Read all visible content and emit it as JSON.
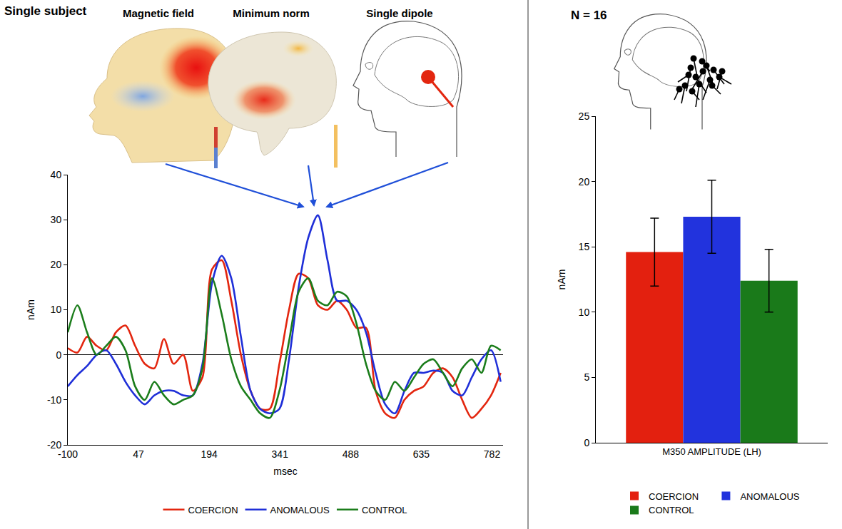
{
  "chart_data": [
    {
      "type": "line",
      "title": "Single subject",
      "annotations": [
        "Magnetic field",
        "Minimum norm",
        "Single dipole"
      ],
      "xlabel": "msec",
      "ylabel": "nAm",
      "x": [
        -100,
        -80,
        -60,
        -40,
        -20,
        0,
        20,
        40,
        60,
        80,
        100,
        120,
        140,
        160,
        180,
        200,
        220,
        240,
        260,
        280,
        300,
        320,
        340,
        360,
        380,
        400,
        420,
        440,
        460,
        480,
        500,
        520,
        540,
        560,
        580,
        600,
        620,
        640,
        660,
        680,
        700,
        720,
        740,
        760,
        780,
        800
      ],
      "series": [
        {
          "name": "COERCION",
          "color": "#e3260f",
          "values": [
            1.5,
            0.5,
            4,
            2,
            1,
            5,
            6.5,
            2,
            -2,
            -3,
            3.5,
            -2,
            0,
            -8,
            -5,
            19,
            21,
            12,
            0,
            -8,
            -12,
            -12,
            -2,
            10,
            18,
            17,
            11,
            10,
            12,
            10,
            6,
            6,
            -8,
            -13,
            -14,
            -10,
            -8,
            -7,
            -4,
            -3,
            -5,
            -10,
            -14,
            -12,
            -9,
            -4
          ]
        },
        {
          "name": "ANOMALOUS",
          "color": "#1f2fd8",
          "values": [
            -7,
            -4.5,
            -2.5,
            0,
            1,
            -2,
            -6,
            -9,
            -11,
            -9,
            -8,
            -8,
            -9,
            -9,
            -2,
            16,
            22,
            17,
            4,
            -8,
            -12,
            -13,
            -12,
            -1,
            15,
            26,
            31,
            21,
            12,
            12,
            10,
            5,
            -4,
            -11,
            -13,
            -8,
            -4,
            -4,
            -3.5,
            -4,
            -8,
            -9,
            -5,
            -1,
            1,
            -6
          ]
        },
        {
          "name": "CONTROL",
          "color": "#1b7d1b",
          "values": [
            5,
            11,
            5,
            0,
            2,
            4,
            1,
            -7,
            -10,
            -6,
            -9,
            -11,
            -10,
            -9,
            -3,
            17,
            9,
            -1,
            -7,
            -10,
            -13,
            -14,
            -8,
            3,
            14,
            17,
            12,
            11,
            14,
            13,
            7,
            -2,
            -8,
            -10,
            -6,
            -8,
            -5,
            -2,
            -1,
            -4,
            -7,
            -3,
            -1,
            -4,
            2,
            1
          ]
        }
      ],
      "xlim": [
        -100,
        805
      ],
      "xticks": [
        -100,
        47,
        194,
        341,
        488,
        635,
        782
      ],
      "ylim": [
        -20,
        40
      ],
      "yticks": [
        -20,
        -10,
        0,
        10,
        20,
        30,
        40
      ],
      "legend": "bottom",
      "grid": false
    },
    {
      "type": "bar",
      "title": "N = 16",
      "ylabel": "nAm",
      "categories": [
        "M350 AMPLITUDE (LH)"
      ],
      "series": [
        {
          "name": "COERCION",
          "color": "#e3200f",
          "values": [
            14.6
          ],
          "errors": [
            2.6
          ]
        },
        {
          "name": "ANOMALOUS",
          "color": "#2233dd",
          "values": [
            17.3
          ],
          "errors": [
            2.8
          ]
        },
        {
          "name": "CONTROL",
          "color": "#1a7a1a",
          "values": [
            12.4
          ],
          "errors": [
            2.4
          ]
        }
      ],
      "ylim": [
        0,
        25
      ],
      "yticks": [
        0,
        5,
        10,
        15,
        20,
        25
      ],
      "legend": "bottom",
      "grid": false
    }
  ]
}
